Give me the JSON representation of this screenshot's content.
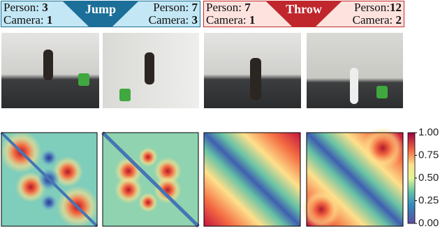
{
  "panels": [
    {
      "action": "Jump",
      "left": {
        "person_label": "Person:",
        "person": 3,
        "camera_label": "Camera:",
        "camera": 1
      },
      "right": {
        "person_label": "Person:",
        "person": 7,
        "camera_label": "Camera:",
        "camera": 3
      }
    },
    {
      "action": "Throw",
      "left": {
        "person_label": "Person:",
        "person": 7,
        "camera_label": "Camera:",
        "camera": 1
      },
      "right": {
        "person_label": "Person:",
        "person": 12,
        "camera_label": "Camera:",
        "camera": 2
      }
    }
  ],
  "colorbar": {
    "range": [
      0,
      1
    ],
    "ticks": [
      {
        "value": 0,
        "label": "0.00"
      },
      {
        "value": 0.25,
        "label": "0.25"
      },
      {
        "value": 0.5,
        "label": "0.50"
      },
      {
        "value": 0.75,
        "label": "0.75"
      },
      {
        "value": 1,
        "label": "1.00"
      }
    ]
  }
}
